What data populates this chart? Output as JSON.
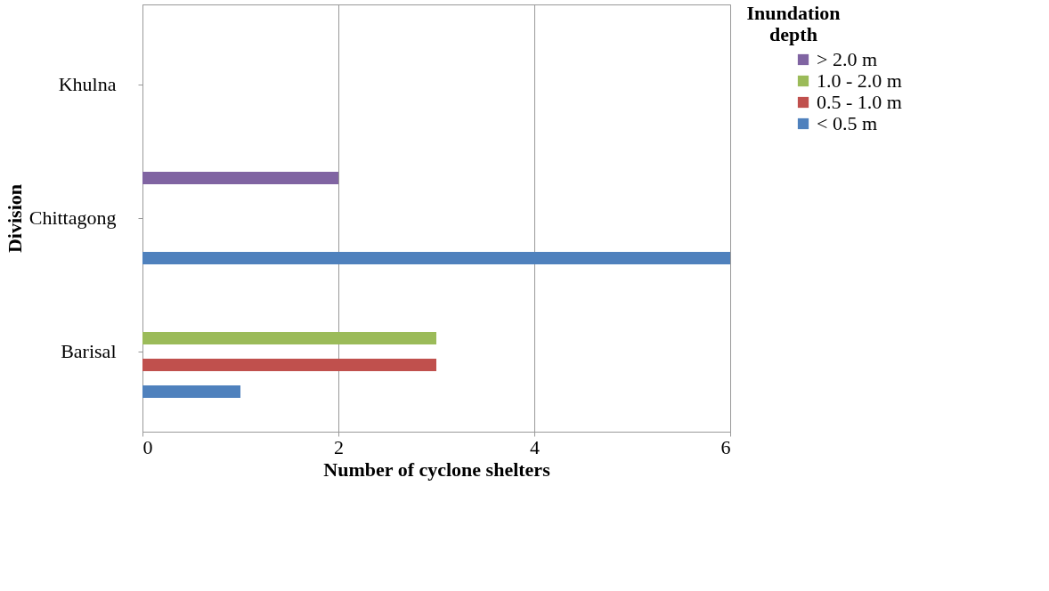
{
  "chart_data": {
    "type": "bar",
    "orientation": "horizontal",
    "categories": [
      "Khulna",
      "Chittagong",
      "Barisal"
    ],
    "series": [
      {
        "name": "> 2.0 m",
        "color": "#8064a2",
        "values": [
          0,
          2,
          0
        ]
      },
      {
        "name": "1.0 - 2.0 m",
        "color": "#9bbb59",
        "values": [
          0,
          0,
          3
        ]
      },
      {
        "name": "0.5 - 1.0 m",
        "color": "#c0504d",
        "values": [
          0,
          0,
          3
        ]
      },
      {
        "name": "< 0.5 m",
        "color": "#4f81bd",
        "values": [
          0,
          6,
          1
        ]
      }
    ],
    "xlim": [
      0,
      6
    ],
    "xticks": [
      0,
      2,
      4,
      6
    ],
    "xlabel": "Number of cyclone shelters",
    "ylabel": "Division",
    "legend_title": "Inundation depth",
    "legend": "right",
    "grid": "x"
  }
}
